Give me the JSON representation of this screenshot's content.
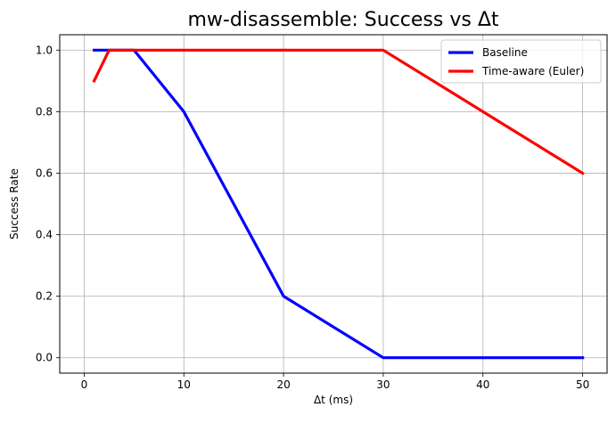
{
  "chart_data": {
    "type": "line",
    "title": "mw-disassemble: Success vs Δt",
    "xlabel": "Δt (ms)",
    "ylabel": "Success Rate",
    "xlim": [
      -2.45,
      52.45
    ],
    "ylim": [
      -0.05,
      1.05
    ],
    "xticks": [
      0,
      10,
      20,
      30,
      40,
      50
    ],
    "yticks": [
      0.0,
      0.2,
      0.4,
      0.6,
      0.8,
      1.0
    ],
    "xtick_labels": [
      "0",
      "10",
      "20",
      "30",
      "40",
      "50"
    ],
    "ytick_labels": [
      "0.0",
      "0.2",
      "0.4",
      "0.6",
      "0.8",
      "1.0"
    ],
    "grid": true,
    "legend_position": "top-right",
    "series": [
      {
        "name": "Baseline",
        "color": "#0000ff",
        "x": [
          1,
          2.5,
          5,
          10,
          20,
          30,
          50
        ],
        "y": [
          1.0,
          1.0,
          1.0,
          0.8,
          0.2,
          0.0,
          0.0
        ]
      },
      {
        "name": "Time-aware (Euler)",
        "color": "#ff0000",
        "x": [
          1,
          2.5,
          5,
          10,
          20,
          30,
          50
        ],
        "y": [
          0.9,
          1.0,
          1.0,
          1.0,
          1.0,
          1.0,
          0.6
        ]
      }
    ]
  }
}
